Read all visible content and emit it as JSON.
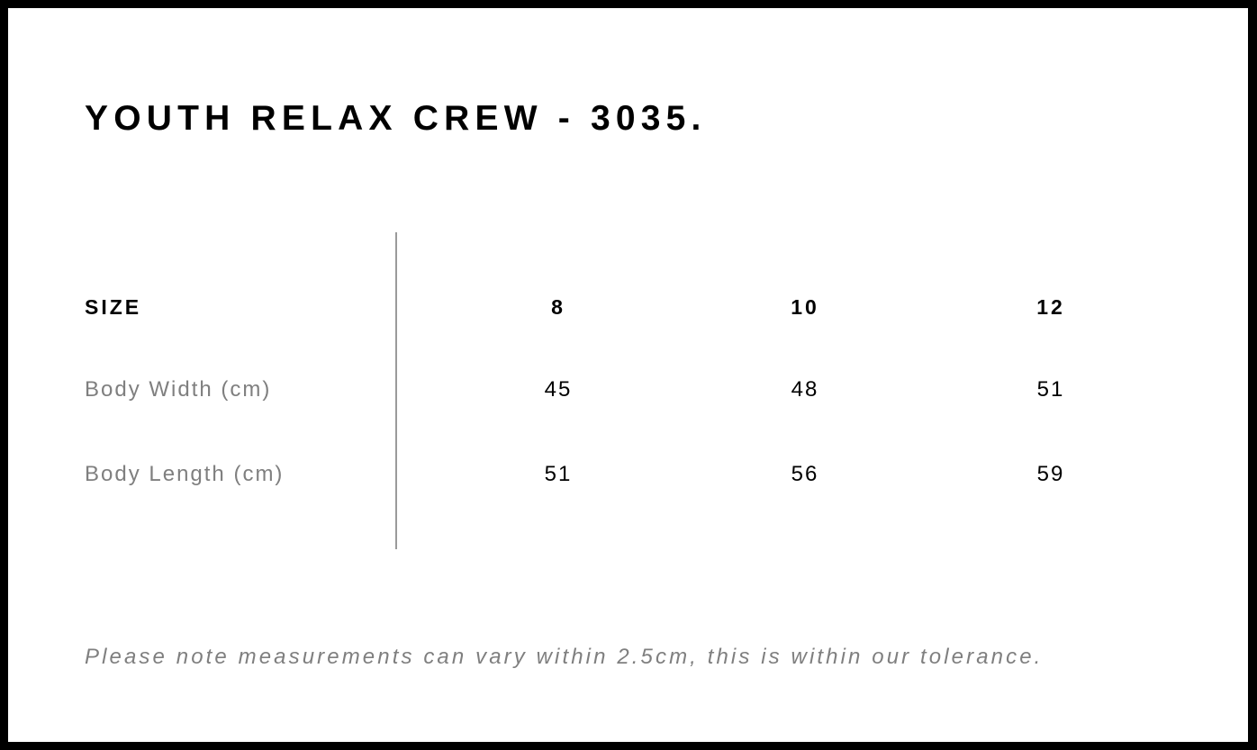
{
  "title": "YOUTH RELAX CREW - 3035.",
  "table": {
    "header": {
      "label": "SIZE",
      "sizes": [
        "8",
        "10",
        "12"
      ]
    },
    "rows": [
      {
        "label": "Body Width (cm)",
        "values": [
          "45",
          "48",
          "51"
        ]
      },
      {
        "label": "Body Length (cm)",
        "values": [
          "51",
          "56",
          "59"
        ]
      }
    ]
  },
  "note": "Please note measurements can vary within 2.5cm, this is within our tolerance."
}
